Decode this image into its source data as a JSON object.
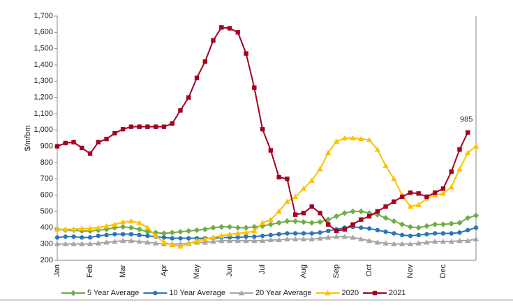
{
  "chart_data": {
    "type": "line",
    "y_label": "$/mfbm",
    "annotation": "985",
    "categories": [
      "Jan",
      null,
      null,
      null,
      "Feb",
      null,
      null,
      null,
      "Mar",
      null,
      null,
      null,
      null,
      "Apr",
      null,
      null,
      null,
      "May",
      null,
      null,
      null,
      "Jun",
      null,
      null,
      null,
      "Jul",
      null,
      null,
      null,
      null,
      "Aug",
      null,
      null,
      null,
      "Sep",
      null,
      null,
      null,
      "Oct",
      null,
      null,
      null,
      null,
      "Nov",
      null,
      null,
      null,
      "Dec",
      null,
      null,
      null,
      null
    ],
    "ylim": [
      200,
      1700
    ],
    "yticks": [
      200,
      300,
      400,
      500,
      600,
      700,
      800,
      900,
      {
        "value": 1000,
        "label": "1,000"
      },
      {
        "value": 1100,
        "label": "1,100"
      },
      {
        "value": 1200,
        "label": "1,200"
      },
      {
        "value": 1300,
        "label": "1,300"
      },
      {
        "value": 1400,
        "label": "1,400"
      },
      {
        "value": 1500,
        "label": "1,500"
      },
      {
        "value": 1600,
        "label": "1,600"
      },
      {
        "value": 1700,
        "label": "1,700"
      }
    ],
    "series": [
      {
        "name": "5 Year Average",
        "color": "#70ad47",
        "marker": "diamond",
        "values": [
          390,
          385,
          385,
          380,
          380,
          385,
          390,
          400,
          405,
          400,
          390,
          375,
          370,
          365,
          370,
          375,
          380,
          385,
          390,
          400,
          405,
          405,
          400,
          400,
          405,
          410,
          420,
          430,
          440,
          440,
          435,
          430,
          435,
          450,
          470,
          490,
          500,
          500,
          490,
          480,
          460,
          440,
          420,
          405,
          400,
          410,
          420,
          420,
          425,
          430,
          460,
          475
        ]
      },
      {
        "name": "10 Year Average",
        "color": "#2e75b6",
        "marker": "circle",
        "values": [
          340,
          345,
          345,
          340,
          340,
          350,
          355,
          360,
          360,
          360,
          355,
          350,
          345,
          340,
          335,
          335,
          335,
          335,
          335,
          335,
          340,
          340,
          340,
          345,
          345,
          350,
          355,
          360,
          365,
          365,
          365,
          365,
          370,
          380,
          390,
          400,
          405,
          400,
          395,
          385,
          375,
          365,
          355,
          350,
          355,
          360,
          365,
          365,
          365,
          370,
          385,
          400
        ]
      },
      {
        "name": "20 Year Average",
        "color": "#a6a6a6",
        "marker": "triangle",
        "values": [
          300,
          300,
          300,
          300,
          300,
          305,
          310,
          315,
          320,
          320,
          315,
          310,
          305,
          300,
          300,
          300,
          305,
          310,
          310,
          315,
          320,
          320,
          320,
          320,
          320,
          320,
          325,
          325,
          330,
          330,
          330,
          330,
          335,
          340,
          345,
          345,
          340,
          330,
          320,
          310,
          305,
          300,
          300,
          300,
          305,
          310,
          315,
          315,
          315,
          320,
          320,
          330
        ]
      },
      {
        "name": "2020",
        "color": "#ffc000",
        "marker": "triangle",
        "values": [
          390,
          390,
          390,
          395,
          395,
          400,
          410,
          420,
          435,
          440,
          430,
          400,
          350,
          310,
          295,
          285,
          300,
          320,
          330,
          340,
          350,
          360,
          365,
          370,
          380,
          430,
          450,
          500,
          560,
          590,
          640,
          690,
          760,
          860,
          930,
          950,
          950,
          945,
          940,
          880,
          780,
          700,
          600,
          530,
          540,
          580,
          600,
          610,
          650,
          760,
          860,
          900
        ]
      },
      {
        "name": "2021",
        "color": "#a50021",
        "marker": "square",
        "values": [
          900,
          920,
          925,
          890,
          855,
          925,
          945,
          980,
          1005,
          1020,
          1020,
          1020,
          1020,
          1020,
          1040,
          1120,
          1200,
          1320,
          1420,
          1550,
          1630,
          1625,
          1600,
          1470,
          1260,
          1005,
          875,
          710,
          700,
          480,
          490,
          530,
          490,
          420,
          380,
          390,
          420,
          450,
          470,
          500,
          530,
          560,
          590,
          615,
          610,
          590,
          615,
          640,
          745,
          880,
          985,
          null
        ]
      }
    ]
  }
}
